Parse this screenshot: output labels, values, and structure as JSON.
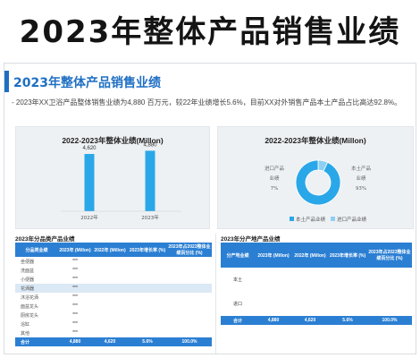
{
  "banner": {
    "title": "2023年整体产品销售业绩"
  },
  "slide": {
    "heading": "2023年整体产品销售业绩",
    "summary": "- 2023年XX卫浴产品整体销售业绩为4,880 百万元，较22年业绩增长5.6%，目前XX对外销售产品本土产品占比高达92.8%。"
  },
  "chart_data": [
    {
      "type": "bar",
      "title": "2022-2023年整体业绩(Millon)",
      "categories": [
        "2022年",
        "2023年"
      ],
      "values": [
        4620,
        4880
      ],
      "value_labels": [
        "4,620",
        "4,880"
      ],
      "ylim": [
        0,
        5200
      ],
      "color": "#2aa7e8"
    },
    {
      "type": "pie",
      "title": "2022-2023年整体业绩(Millon)",
      "categories": [
        "本土产品业绩",
        "进口产品业绩"
      ],
      "values": [
        93,
        7
      ],
      "slice_labels": [
        {
          "name": "本土产品",
          "suffix": "业绩",
          "pct": "93%"
        },
        {
          "name": "进口产品",
          "suffix": "业绩",
          "pct": "7%"
        }
      ],
      "colors": [
        "#2aa7e8",
        "#8fd0f2"
      ],
      "legend": "bottom"
    }
  ],
  "left_table": {
    "title": "2023年分品类产品业绩",
    "headers": [
      "分品类业绩",
      "2023年 (Millon)",
      "2022年 (Millon)",
      "2023年增长率 (%)",
      "2023年占2023整体业绩百分比 (%)"
    ],
    "rows": [
      [
        "坐便器",
        "***",
        "",
        "",
        ""
      ],
      [
        "洗面盆",
        "***",
        "",
        "",
        ""
      ],
      [
        "小便器",
        "***",
        "",
        "",
        ""
      ],
      [
        "花洒器",
        "***",
        "",
        "",
        ""
      ],
      [
        "沐浴花洒",
        "***",
        "",
        "",
        ""
      ],
      [
        "面盆龙头",
        "***",
        "",
        "",
        ""
      ],
      [
        "厨房龙头",
        "***",
        "",
        "",
        ""
      ],
      [
        "浴缸",
        "***",
        "",
        "",
        ""
      ],
      [
        "其他",
        "***",
        "",
        "",
        ""
      ]
    ],
    "highlight_row": 3,
    "total": [
      "合计",
      "4,880",
      "4,620",
      "5.6%",
      "100.0%"
    ]
  },
  "right_table": {
    "title": "2023年分产地产品业绩",
    "headers": [
      "分产地业绩",
      "2023年 (Millon)",
      "2022年 (Millon)",
      "2023年增长率 (%)",
      "2023年占2023整体业绩百分比 (%)"
    ],
    "rows": [
      [
        "本土",
        "",
        "",
        "",
        ""
      ],
      [
        "进口",
        "",
        "",
        "",
        ""
      ]
    ],
    "total": [
      "合计",
      "4,880",
      "4,620",
      "5.6%",
      "100.0%"
    ]
  }
}
